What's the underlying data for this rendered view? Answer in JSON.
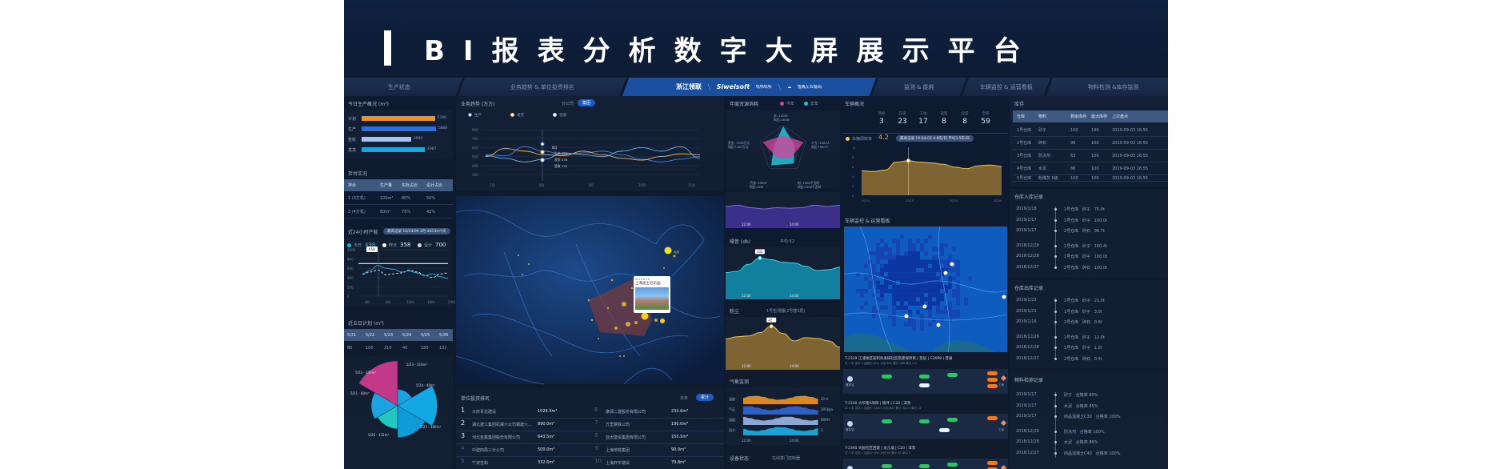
{
  "header": {
    "title": "BI报表分析数字大屏展示平台"
  },
  "nav": {
    "tabs": [
      {
        "label": "生产状态"
      },
      {
        "label": "业务趋势 & 单位投资排名"
      },
      {
        "label": "浙江领联",
        "brand": "Siwelsoft",
        "brand_sub": "思伟软件",
        "slogan": "蓝建上云驱动"
      },
      {
        "label": "监测 & 能耗"
      },
      {
        "label": "车辆监控 & 运营看板"
      },
      {
        "label": "物料检测 &库存监测"
      }
    ]
  },
  "today": {
    "title": "今日生产概况 (m³)",
    "max": 6000,
    "items": [
      {
        "label": "计划",
        "value": 5780,
        "color": "#f0901e"
      },
      {
        "label": "生产",
        "value": 5880,
        "color": "#2f6fd8"
      },
      {
        "label": "签收",
        "value": 3900,
        "color": "#a9c3ee"
      },
      {
        "label": "发货",
        "value": 4987,
        "color": "#1aa6dc"
      }
    ]
  },
  "mixer": {
    "title": "拌台实况",
    "headers": [
      "拌台",
      "生产量",
      "实际占比",
      "设计占比"
    ],
    "rows": [
      [
        "1 (3方机)",
        "100m³",
        "80%",
        "50%"
      ],
      [
        "2 (4方机)",
        "80m³",
        "76%",
        "42%"
      ]
    ]
  },
  "capacity24": {
    "title": "近24小时产能",
    "badge": "最高记录 10/24/09 1时 4813m³/天",
    "legend": [
      {
        "label": "今日",
        "value": "498",
        "color": "#1fb5e0"
      },
      {
        "label": "昨日",
        "value": "358",
        "color": "#ffffff"
      },
      {
        "label": "设计",
        "value": "700",
        "color": "#d9d9d9"
      }
    ],
    "yticks": [
      "1000",
      "800",
      "600",
      "400",
      "200",
      "0"
    ],
    "xticks": [
      "0时",
      "6时",
      "12时",
      "18时",
      "24时"
    ],
    "tooltip": "658",
    "today": [
      480,
      560,
      660,
      600,
      580,
      520,
      540,
      500,
      440,
      480,
      420,
      380
    ],
    "yesterday": [
      470,
      520,
      560,
      460,
      480,
      500,
      560,
      520,
      450,
      400,
      480,
      500
    ],
    "design": 700,
    "ymax": 1000
  },
  "five_day": {
    "title": "近五日计划 (m³)",
    "dates": [
      "5/21",
      "5/22",
      "5/23",
      "5/24",
      "5/25",
      "5/26"
    ],
    "values": [
      80,
      100,
      210,
      40,
      180,
      132
    ],
    "labels": [
      "5/21 - 80m³",
      "5/22 - 100m³",
      "5/23 - 210m³",
      "5/24 - 40m³",
      "5/25 - 180m³",
      "5/26 - 132m³"
    ]
  },
  "trend": {
    "title": "业务趋势 (万方)",
    "toggle": [
      "分公司",
      "集团"
    ],
    "legend": [
      {
        "label": "生产",
        "color": "#3f7ee8"
      },
      {
        "label": "发货",
        "color": "#f3b54a"
      },
      {
        "label": "签收",
        "color": "#9fd3f3"
      }
    ],
    "yticks": [
      "800",
      "700",
      "600",
      "500",
      "400",
      "300"
    ],
    "xticks": [
      "7月",
      "8月",
      "9月",
      "10月",
      "11月"
    ],
    "tooltip": {
      "title": "8月",
      "lines": [
        "生产 520",
        "发货 478",
        "签收 434"
      ]
    },
    "series": [
      {
        "name": "生产",
        "color": "#3f7ee8",
        "values": [
          520,
          510,
          610,
          560,
          520,
          540,
          560,
          520,
          470,
          440,
          470,
          500
        ]
      },
      {
        "name": "发货",
        "color": "#f3b54a",
        "values": [
          500,
          590,
          560,
          520,
          510,
          560,
          520,
          480,
          460,
          500,
          530,
          520
        ]
      },
      {
        "name": "签收",
        "color": "#6fb6e6",
        "values": [
          510,
          480,
          440,
          470,
          540,
          520,
          500,
          560,
          600,
          560,
          610,
          480
        ]
      }
    ],
    "ymin": 300,
    "ymax": 800
  },
  "map": {
    "tooltip_date": "2019.6.18",
    "tooltip_title": "上海迪士尼乐园",
    "city_label": "大庆"
  },
  "ranking": {
    "title": "单位投资排名",
    "toggle": [
      "本年",
      "累计"
    ],
    "items": [
      {
        "rank": "1",
        "name": "大庆青龙建设",
        "value": "1026.5m³"
      },
      {
        "rank": "2",
        "name": "湖北建工集团机械六公司钢建六...",
        "value": "890.0m³"
      },
      {
        "rank": "3",
        "name": "河北金鑫集团股份有限公司",
        "value": "643.5m³"
      },
      {
        "rank": "4",
        "name": "中建四局三分公司",
        "value": "500.0m³"
      },
      {
        "rank": "5",
        "name": "宁波吉和",
        "value": "332.6m³"
      },
      {
        "rank": "6",
        "name": "泰源二建股份有限公司",
        "value": "232.6m³"
      },
      {
        "rank": "7",
        "name": "万里钢铁公司",
        "value": "190.0m³"
      },
      {
        "rank": "8",
        "name": "亚太建设集团有限公司",
        "value": "155.5m³"
      },
      {
        "rank": "9",
        "name": "上海地铁集团",
        "value": "90.0m³"
      },
      {
        "rank": "10",
        "name": "上海轩宇建设",
        "value": "79.8m³"
      }
    ]
  },
  "resource": {
    "title": "年度资源消耗",
    "legend": [
      {
        "label": "今年",
        "color": "#d0459a"
      },
      {
        "label": "去年",
        "color": "#22c3d8"
      }
    ],
    "labels": [
      [
        "水: 1500t",
        "同比↓400t"
      ],
      [
        "人力: 1502人",
        "同比↑967人"
      ],
      [
        "电: 1500千瓦时",
        "同比↓300千瓦时"
      ],
      [
        "汽油: 1500t",
        "同比↓50t"
      ],
      [
        "资金: 1530万元",
        "同比↑187万元"
      ]
    ],
    "this_year": [
      0.55,
      0.9,
      0.5,
      0.45,
      0.9
    ],
    "last_year": [
      0.95,
      0.5,
      0.75,
      0.85,
      0.4
    ]
  },
  "purple_chart": {
    "xticks": [
      "12:00",
      "14:00"
    ],
    "values": [
      0.55,
      0.6,
      0.5,
      0.45,
      0.5,
      0.48,
      0.5,
      0.6,
      0.55,
      0.6
    ]
  },
  "noise": {
    "title": "噪音 (db)",
    "avg": "平均:52",
    "tooltip": "102",
    "xticks": [
      "12:00",
      "14:00"
    ],
    "values": [
      0.45,
      0.48,
      0.65,
      0.8,
      0.76,
      0.7,
      0.68,
      0.6,
      0.5,
      0.52,
      0.58
    ]
  },
  "dust": {
    "title": "粉尘",
    "sensor": "1号检测器(2号楼3层)",
    "tooltip": "42",
    "xticks": [
      "12:00",
      "14:00"
    ],
    "values": [
      0.55,
      0.6,
      0.62,
      0.7,
      0.85,
      0.68,
      0.5,
      0.58,
      0.56,
      0.5,
      0.35
    ]
  },
  "weather": {
    "title": "气象监测",
    "xticks": [
      "12:00",
      "14:00"
    ],
    "rows": [
      {
        "label": "温度",
        "value": "25℃",
        "color": "#d88a1e"
      },
      {
        "label": "气压",
        "value": "101kpa",
        "color": "#2f5fc4"
      },
      {
        "label": "湿度",
        "value": "80RH",
        "color": "#8ea6d6"
      },
      {
        "label": "风力",
        "value": "3",
        "color": "#18a3d6"
      }
    ]
  },
  "device": {
    "title": "设备状态",
    "sub": "在线率门控制器"
  },
  "vehicles": {
    "title": "车辆概况",
    "stats": [
      {
        "label": "待发",
        "value": "3"
      },
      {
        "label": "在途",
        "value": "23"
      },
      {
        "label": "工地",
        "value": "17"
      },
      {
        "label": "返程",
        "value": "8"
      },
      {
        "label": "异常",
        "value": "8"
      },
      {
        "label": "全部",
        "value": "59"
      }
    ],
    "turnover_label": "车辆周转率",
    "turnover": "4.2",
    "badge": "最高记录 19-04-02 4.8车/日 平均3.5车/日",
    "yticks": [
      "10",
      "8",
      "6",
      "4",
      "2",
      "0"
    ],
    "xticks": [
      "20/10",
      "20/15",
      "20/20",
      "20/25"
    ],
    "values": [
      3.4,
      3.3,
      3.5,
      4.6,
      4.8,
      4.6,
      4.5,
      4.3,
      3.9,
      3.7,
      4.1,
      4.2,
      4.0
    ],
    "ymax": 10
  },
  "monitor": {
    "title": "车辆监控 & 运营看板",
    "plant": "搅拌站",
    "site": "工地",
    "trips": [
      {
        "title": "T-2319  江浦地区安刺杀发研社区搭建保项目  |  垫层  |  C30P8  |  普通",
        "sub": "共 7 车   送车 3   运距约 8km   计划 600   累计 068   单次 8.0"
      },
      {
        "title": "T-2330  大华铭A项目  |  墙坪  |  C20  |  非泵",
        "sub": "共 4 车   送车 1   运距约 3.6km   计划 600   累计 300.0   单次 12"
      },
      {
        "title": "T-2340  天居社区西建  |  龙儿墙  |  C20  |  非泵",
        "sub": "共 3 车   送车 1   运距约 3km   计划 60   累计 02   单次 5"
      }
    ]
  },
  "stock": {
    "title": "库存",
    "headers": [
      "仓库",
      "物料",
      "剩余库存",
      "最大库存",
      "上次盘点"
    ],
    "rows": [
      [
        "1号仓库",
        "砂子",
        "100",
        "140",
        "2019-09-03 16:55"
      ],
      [
        "2号仓库",
        "碎石",
        "96",
        "100",
        "2019-09-03 16:55"
      ],
      [
        "3号仓库",
        "防冻剂",
        "63",
        "100",
        "2019-09-03 16:55"
      ],
      [
        "4号仓库",
        "水泥",
        "88",
        "100",
        "2019-09-03 16:55"
      ],
      [
        "5号仓库",
        "粉煤灰 II级",
        "100",
        "100",
        "2019-09-03 16:55"
      ]
    ]
  },
  "inbound": {
    "title": "仓库入库记录",
    "rows": [
      [
        "2019/1/18",
        "1号仓库   砂子   75.0t"
      ],
      [
        "2019/1/17",
        "1号仓库   砂子   100.0t"
      ],
      [
        "2019/1/17",
        "2号仓库   碎石   96.7t"
      ],
      [
        "2018/12/29",
        "1号仓库   砂子   100.4t"
      ],
      [
        "2018/12/28",
        "1号仓库   砂子   100.0t"
      ],
      [
        "2018/12/27",
        "2号仓库   碎石   100.0t"
      ]
    ]
  },
  "outbound": {
    "title": "仓库出库记录",
    "rows": [
      [
        "2019/1/22",
        "1号仓库   砂子   21.0t"
      ],
      [
        "2019/1/21",
        "1号仓库   砂子   3.0t"
      ],
      [
        "2019/1/16",
        "2号仓库   碎石   0.6t"
      ],
      [
        "2018/12/29",
        "1号仓库   砂子   12.0t"
      ],
      [
        "2018/12/28",
        "1号仓库   砂子   1.0t"
      ],
      [
        "2018/12/27",
        "2号仓库   碎石   0.5t"
      ]
    ]
  },
  "inspection": {
    "title": "物料检测记录",
    "rows": [
      [
        "2019/1/17",
        "砂子   合格率 80%"
      ],
      [
        "2019/1/17",
        "水泥   合格率 85%"
      ],
      [
        "2019/1/17",
        "商品混凝土C30   合格率 100%"
      ],
      [
        "2018/12/29",
        "防冻剂   合格率 100%"
      ],
      [
        "2018/12/28",
        "水泥   合格率 86%"
      ],
      [
        "2018/12/27",
        "商品混凝土C40   合格率 100%"
      ]
    ]
  }
}
